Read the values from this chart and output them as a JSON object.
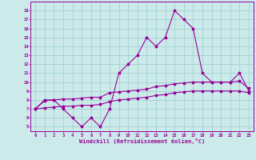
{
  "x": [
    0,
    1,
    2,
    3,
    4,
    5,
    6,
    7,
    8,
    9,
    10,
    11,
    12,
    13,
    14,
    15,
    16,
    17,
    18,
    19,
    20,
    21,
    22,
    23
  ],
  "line1": [
    7,
    8,
    8,
    7,
    6,
    5,
    6,
    5,
    7,
    11,
    12,
    13,
    15,
    14,
    15,
    18,
    17,
    16,
    11,
    10,
    10,
    10,
    11,
    9
  ],
  "line2": [
    7.0,
    7.9,
    8.0,
    8.1,
    8.1,
    8.2,
    8.3,
    8.3,
    8.8,
    8.9,
    9.0,
    9.1,
    9.2,
    9.5,
    9.6,
    9.8,
    9.9,
    10.0,
    10.0,
    10.0,
    10.0,
    10.0,
    10.1,
    9.3
  ],
  "line3": [
    7.0,
    7.1,
    7.2,
    7.3,
    7.3,
    7.4,
    7.4,
    7.5,
    7.8,
    8.0,
    8.1,
    8.2,
    8.3,
    8.5,
    8.6,
    8.8,
    8.9,
    9.0,
    9.0,
    9.0,
    9.0,
    9.0,
    9.0,
    8.8
  ],
  "color": "#990099",
  "bg_color": "#cceaea",
  "grid_color": "#99cccc",
  "xlabel": "Windchill (Refroidissement éolien,°C)",
  "ylim": [
    4.5,
    19
  ],
  "xlim": [
    -0.5,
    23.5
  ],
  "yticks": [
    5,
    6,
    7,
    8,
    9,
    10,
    11,
    12,
    13,
    14,
    15,
    16,
    17,
    18
  ],
  "xticks": [
    0,
    1,
    2,
    3,
    4,
    5,
    6,
    7,
    8,
    9,
    10,
    11,
    12,
    13,
    14,
    15,
    16,
    17,
    18,
    19,
    20,
    21,
    22,
    23
  ]
}
